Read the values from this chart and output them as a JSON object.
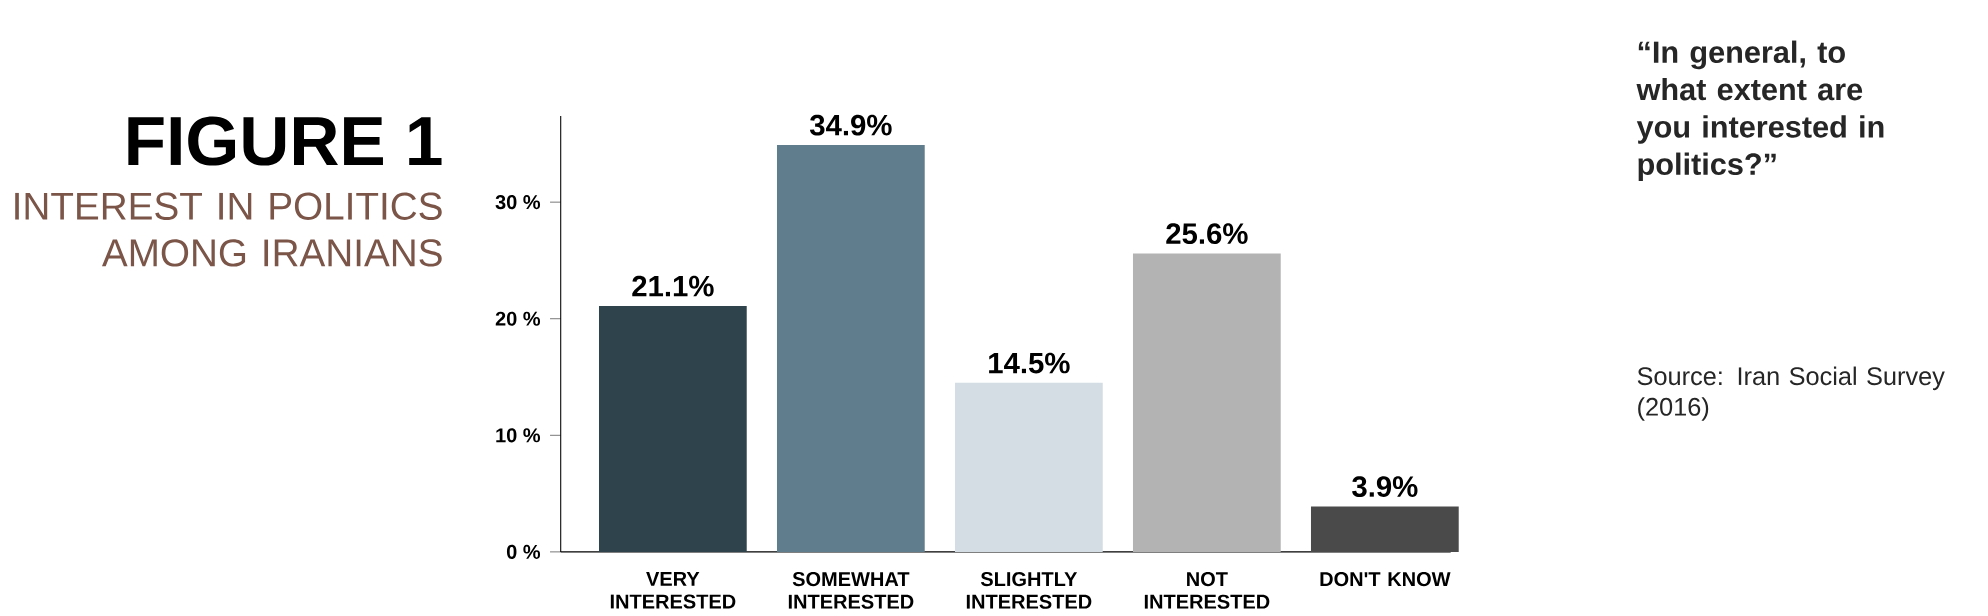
{
  "chart_data": {
    "type": "bar",
    "title": "FIGURE 1",
    "subtitle": "INTEREST IN POLITICS AMONG IRANIANS",
    "categories": [
      "VERY INTERESTED",
      "SOMEWHAT INTERESTED",
      "SLIGHTLY INTERESTED",
      "NOT INTERESTED",
      "DON'T KNOW"
    ],
    "values": [
      21.1,
      34.9,
      14.5,
      25.6,
      3.9
    ],
    "value_labels": [
      "21.1%",
      "34.9%",
      "14.5%",
      "25.6%",
      "3.9%"
    ],
    "colors": [
      "#2f434d",
      "#5f7d8c",
      "#d3dde3",
      "#b3b3b3",
      "#4a4a4a"
    ],
    "ylim": [
      0,
      37.4
    ],
    "yticks": [
      {
        "value": 0,
        "label": "0 %"
      },
      {
        "value": 10,
        "label": "10 %"
      },
      {
        "value": 20,
        "label": "20 %"
      },
      {
        "value": 30,
        "label": "30 %"
      }
    ],
    "annotations": [
      "“In general, to what extent are you interested in politics?”",
      "Source: Iran Social Survey (2016)"
    ]
  }
}
